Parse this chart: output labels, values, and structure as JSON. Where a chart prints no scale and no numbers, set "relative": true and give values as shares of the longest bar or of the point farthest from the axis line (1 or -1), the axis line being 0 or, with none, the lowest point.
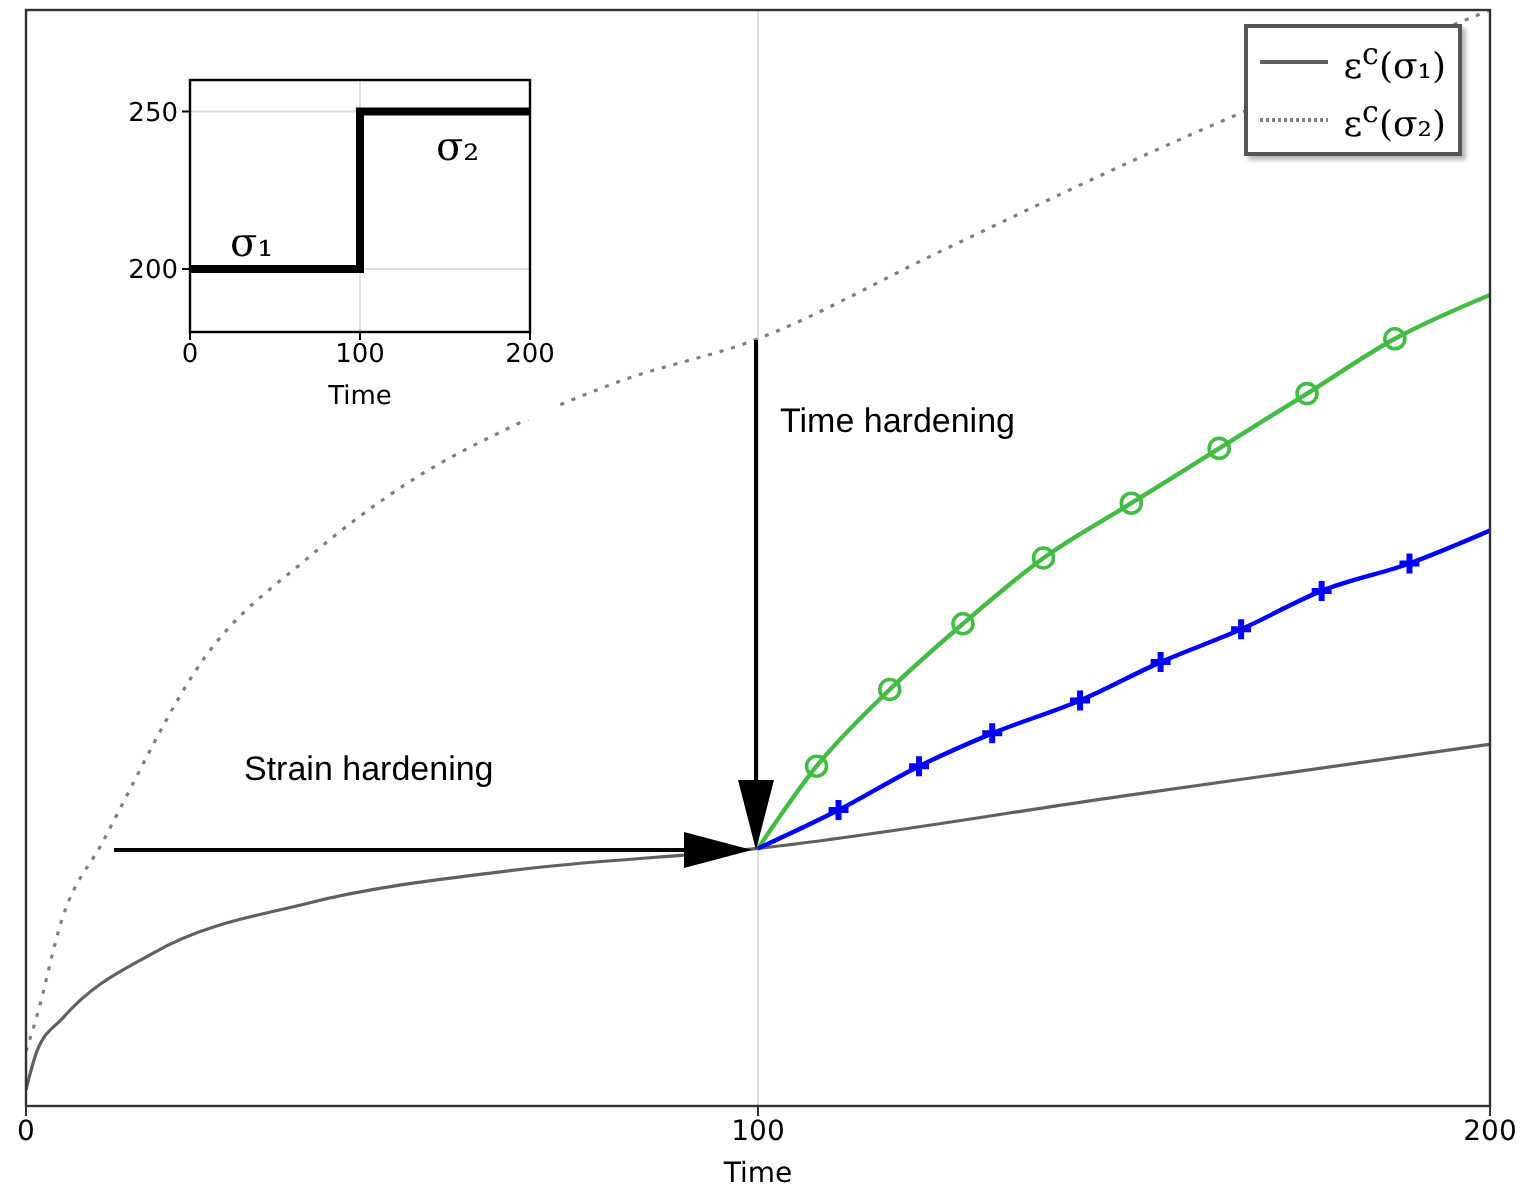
{
  "chart_data": [
    {
      "type": "line",
      "xlabel": "Time",
      "xlim": [
        0,
        200
      ],
      "xticks": [
        0,
        100,
        200
      ],
      "relative": true,
      "grid": "x",
      "legend": "top right",
      "annotations": [
        "Time hardening",
        "Strain hardening"
      ],
      "series": [
        {
          "name": "ε$^{c}$(σ₁)",
          "color": "#606060",
          "line_style": "solid",
          "marker": "none",
          "x": [
            0,
            1.5,
            5,
            17.5,
            38.5,
            66.4,
            100,
            150,
            200
          ],
          "values": [
            0.015,
            0.05,
            0.08,
            0.14,
            0.185,
            0.215,
            0.235,
            0.283,
            0.33
          ]
        },
        {
          "name": "ε$^{c}$(σ₂)",
          "color": "#808080",
          "line_style": "dotted",
          "marker": "none",
          "x": [
            0,
            1.4,
            4.9,
            10.4,
            24.5,
            38.5,
            52.5,
            66.4,
            80.6,
            100,
            125,
            152,
            200
          ],
          "values": [
            0.05,
            0.08,
            0.17,
            0.24,
            0.41,
            0.5,
            0.57,
            0.62,
            0.66,
            0.7,
            0.78,
            0.865,
            1
          ]
        },
        {
          "type": "line",
          "color": "#44bb44",
          "line_style": "solid",
          "marker": "none",
          "x": [
            100,
            108,
            118,
            128,
            139,
            151,
            163,
            175,
            187,
            200
          ],
          "values": [
            0.235,
            0.31,
            0.38,
            0.44,
            0.5,
            0.55,
            0.6,
            0.65,
            0.7,
            0.74
          ]
        },
        {
          "type": "scatter",
          "color": "#44bb44",
          "marker": "circle",
          "x": [
            108,
            118,
            128,
            139,
            151,
            163,
            175,
            187
          ],
          "values": [
            0.31,
            0.38,
            0.44,
            0.5,
            0.55,
            0.6,
            0.65,
            0.7
          ]
        },
        {
          "type": "line",
          "color": "#0000ff",
          "line_style": "solid",
          "marker": "none",
          "x": [
            100,
            111,
            122,
            132,
            144,
            155,
            166,
            177,
            189,
            200
          ],
          "values": [
            0.235,
            0.27,
            0.31,
            0.34,
            0.37,
            0.405,
            0.435,
            0.47,
            0.495,
            0.525
          ]
        },
        {
          "type": "scatter",
          "color": "#0000ff",
          "marker": "cross",
          "x": [
            111,
            122,
            132,
            144,
            155,
            166,
            177,
            189
          ],
          "values": [
            0.27,
            0.31,
            0.34,
            0.37,
            0.405,
            0.435,
            0.47,
            0.495
          ]
        }
      ]
    },
    {
      "type": "step",
      "xlabel": "Time",
      "xlim": [
        0,
        200
      ],
      "xticks": [
        0,
        100,
        200
      ],
      "ylim": [
        180,
        260
      ],
      "yticks": [
        200,
        250
      ],
      "grid": true,
      "color": "#000000",
      "x": [
        0,
        100,
        200
      ],
      "values": [
        200,
        250,
        250
      ],
      "annotations": [
        "σ₁",
        "σ₂"
      ]
    }
  ]
}
